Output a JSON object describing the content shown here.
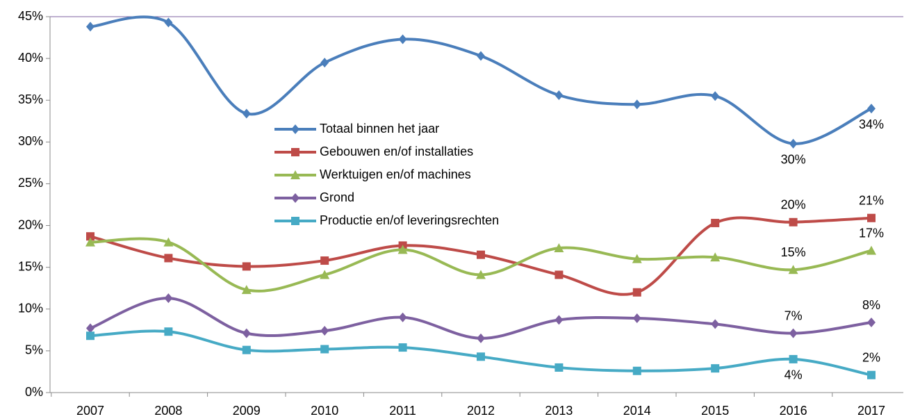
{
  "chart_data": {
    "type": "line",
    "categories": [
      "2007",
      "2008",
      "2009",
      "2010",
      "2011",
      "2012",
      "2013",
      "2014",
      "2015",
      "2016",
      "2017"
    ],
    "ylim": [
      0,
      45
    ],
    "yticks": [
      {
        "value": 0,
        "label": "0%"
      },
      {
        "value": 5,
        "label": "5%"
      },
      {
        "value": 10,
        "label": "10%"
      },
      {
        "value": 15,
        "label": "15%"
      },
      {
        "value": 20,
        "label": "20%"
      },
      {
        "value": 25,
        "label": "25%"
      },
      {
        "value": 30,
        "label": "30%"
      },
      {
        "value": 35,
        "label": "35%"
      },
      {
        "value": 40,
        "label": "40%"
      },
      {
        "value": 45,
        "label": "45%"
      }
    ],
    "smooth": true,
    "series": [
      {
        "name": "Totaal binnen het jaar",
        "color": "#4a7ebb",
        "marker": "diamond",
        "values": [
          43.8,
          44.3,
          33.4,
          39.5,
          42.3,
          40.3,
          35.6,
          34.5,
          35.5,
          29.8,
          34.0
        ],
        "value_labels": [
          null,
          null,
          null,
          null,
          null,
          null,
          null,
          null,
          null,
          "30%",
          "34%"
        ]
      },
      {
        "name": "Gebouwen en/of installaties",
        "color": "#be4b48",
        "marker": "square",
        "values": [
          18.7,
          16.1,
          15.1,
          15.8,
          17.6,
          16.5,
          14.1,
          12.0,
          20.3,
          20.4,
          20.9
        ],
        "value_labels": [
          null,
          null,
          null,
          null,
          null,
          null,
          null,
          null,
          null,
          "20%",
          "21%"
        ]
      },
      {
        "name": "Werktuigen en/of machines",
        "color": "#98b954",
        "marker": "triangle",
        "values": [
          18.0,
          18.0,
          12.3,
          14.1,
          17.1,
          14.1,
          17.3,
          16.0,
          16.2,
          14.7,
          17.0
        ],
        "value_labels": [
          null,
          null,
          null,
          null,
          null,
          null,
          null,
          null,
          null,
          "15%",
          "17%"
        ]
      },
      {
        "name": "Grond",
        "color": "#7d60a0",
        "marker": "diamond",
        "values": [
          7.7,
          11.3,
          7.1,
          7.4,
          9.0,
          6.5,
          8.7,
          8.9,
          8.2,
          7.1,
          8.4
        ],
        "value_labels": [
          null,
          null,
          null,
          null,
          null,
          null,
          null,
          null,
          null,
          "7%",
          "8%"
        ]
      },
      {
        "name": "Productie en/of leveringsrechten",
        "color": "#46aac5",
        "marker": "square",
        "values": [
          6.8,
          7.3,
          5.1,
          5.2,
          5.4,
          4.3,
          3.0,
          2.6,
          2.9,
          4.0,
          2.1
        ],
        "value_labels": [
          null,
          null,
          null,
          null,
          null,
          null,
          null,
          null,
          null,
          "4%",
          "2%"
        ]
      }
    ]
  }
}
